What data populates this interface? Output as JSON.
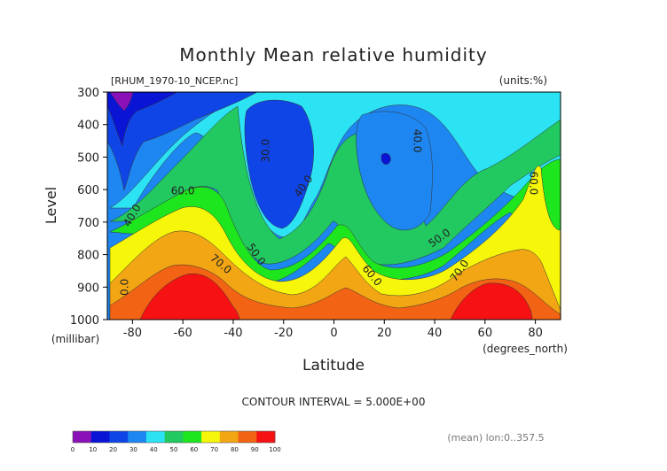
{
  "chart_data": {
    "type": "heatmap",
    "title": "Monthly Mean relative humidity",
    "file_label": "[RHUM_1970-10_NCEP.nc]",
    "units_label": "(units:%)",
    "xlabel": "Latitude",
    "x_units": "(degrees_north)",
    "ylabel": "Level",
    "y_units": "(millibar)",
    "x_ticks": [
      "-80",
      "-60",
      "-40",
      "-20",
      "0",
      "20",
      "40",
      "60",
      "80"
    ],
    "x_tick_values": [
      -80,
      -60,
      -40,
      -20,
      0,
      20,
      40,
      60,
      80
    ],
    "y_ticks": [
      "300",
      "400",
      "500",
      "600",
      "700",
      "800",
      "900",
      "1000"
    ],
    "y_tick_values": [
      300,
      400,
      500,
      600,
      700,
      800,
      900,
      1000
    ],
    "xlim": [
      -90,
      90
    ],
    "ylim": [
      1000,
      300
    ],
    "contour_interval": "CONTOUR INTERVAL = 5.000E+00",
    "footer_note": "(mean) lon:0..357.5",
    "colorbar": {
      "labels": [
        "0",
        "10",
        "20",
        "30",
        "40",
        "50",
        "60",
        "70",
        "80",
        "90",
        "100"
      ],
      "colors": [
        "#8a10b8",
        "#0a14d4",
        "#0f45e6",
        "#1d86f0",
        "#2ce3f4",
        "#22c860",
        "#1ee61e",
        "#f6f60a",
        "#f2a614",
        "#f26414",
        "#f61212"
      ]
    },
    "contour_labels": [
      {
        "text": "30.0",
        "lat": -27,
        "level": 480,
        "rotate": -90
      },
      {
        "text": "40.0",
        "lat": 33,
        "level": 450,
        "rotate": 90
      },
      {
        "text": "40.0",
        "lat": -12,
        "level": 590,
        "rotate": -55
      },
      {
        "text": "60.0",
        "lat": 79,
        "level": 580,
        "rotate": 90
      },
      {
        "text": "60.0",
        "lat": -60,
        "level": 605,
        "rotate": 0
      },
      {
        "text": "40.0",
        "lat": -80,
        "level": 680,
        "rotate": -60
      },
      {
        "text": "50.0",
        "lat": 42,
        "level": 750,
        "rotate": -35
      },
      {
        "text": "50.0",
        "lat": -31,
        "level": 800,
        "rotate": 55
      },
      {
        "text": "70.0",
        "lat": -45,
        "level": 830,
        "rotate": 40
      },
      {
        "text": "70.0",
        "lat": 50,
        "level": 850,
        "rotate": -55
      },
      {
        "text": "60.0",
        "lat": 15,
        "level": 865,
        "rotate": 50
      },
      {
        "text": "0.0",
        "lat": -83,
        "level": 900,
        "rotate": -90
      }
    ],
    "colors": {
      "purple": "#8a10b8",
      "blue_dark": "#0a14d4",
      "blue": "#0f45e6",
      "blue_light": "#1d86f0",
      "cyan": "#2ce3f4",
      "green": "#22c860",
      "green_light": "#1ee61e",
      "yellow": "#f6f60a",
      "orange": "#f2a614",
      "orange_red": "#f26414",
      "red": "#f61212"
    }
  }
}
